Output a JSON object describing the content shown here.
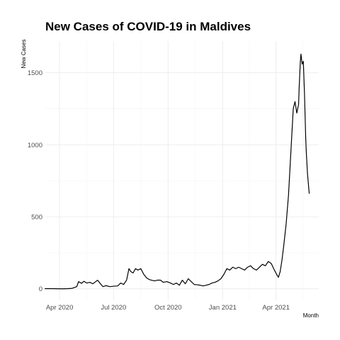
{
  "chart_data": {
    "type": "line",
    "title": "New Cases of COVID-19 in Maldives",
    "xlabel": "Month",
    "ylabel": "New Cases",
    "x_ticks": [
      {
        "date": "2020-04-01",
        "label": "Apr 2020"
      },
      {
        "date": "2020-07-01",
        "label": "Jul 2020"
      },
      {
        "date": "2020-10-01",
        "label": "Oct 2020"
      },
      {
        "date": "2021-01-01",
        "label": "Jan 2021"
      },
      {
        "date": "2021-04-01",
        "label": "Apr 2021"
      }
    ],
    "y_ticks": [
      0,
      500,
      1000,
      1500
    ],
    "xlim": [
      "2020-03-08",
      "2021-06-12"
    ],
    "ylim": [
      -80,
      1720
    ],
    "grid": true,
    "series": [
      {
        "x": [
          "2020-03-07",
          "2020-03-20",
          "2020-04-05",
          "2020-04-15",
          "2020-04-22",
          "2020-04-30",
          "2020-05-03",
          "2020-05-08",
          "2020-05-12",
          "2020-05-17",
          "2020-05-22",
          "2020-05-27",
          "2020-06-01",
          "2020-06-04",
          "2020-06-08",
          "2020-06-13",
          "2020-06-18",
          "2020-06-25",
          "2020-07-01",
          "2020-07-08",
          "2020-07-13",
          "2020-07-18",
          "2020-07-23",
          "2020-07-27",
          "2020-07-30",
          "2020-08-03",
          "2020-08-07",
          "2020-08-11",
          "2020-08-16",
          "2020-08-21",
          "2020-08-26",
          "2020-08-30",
          "2020-09-03",
          "2020-09-08",
          "2020-09-13",
          "2020-09-18",
          "2020-09-23",
          "2020-09-29",
          "2020-10-05",
          "2020-10-10",
          "2020-10-15",
          "2020-10-20",
          "2020-10-25",
          "2020-10-30",
          "2020-11-04",
          "2020-11-09",
          "2020-11-14",
          "2020-11-19",
          "2020-11-24",
          "2020-11-29",
          "2020-12-04",
          "2020-12-09",
          "2020-12-14",
          "2020-12-19",
          "2020-12-24",
          "2020-12-29",
          "2021-01-03",
          "2021-01-08",
          "2021-01-13",
          "2021-01-18",
          "2021-01-23",
          "2021-01-28",
          "2021-02-02",
          "2021-02-07",
          "2021-02-12",
          "2021-02-17",
          "2021-02-22",
          "2021-02-27",
          "2021-03-04",
          "2021-03-09",
          "2021-03-14",
          "2021-03-19",
          "2021-03-24",
          "2021-03-28",
          "2021-04-02",
          "2021-04-05",
          "2021-04-08",
          "2021-04-11",
          "2021-04-14",
          "2021-04-18",
          "2021-04-22",
          "2021-04-26",
          "2021-04-30",
          "2021-05-03",
          "2021-05-06",
          "2021-05-09",
          "2021-05-10",
          "2021-05-12",
          "2021-05-13",
          "2021-05-15",
          "2021-05-17",
          "2021-05-19",
          "2021-05-20",
          "2021-05-21",
          "2021-05-22",
          "2021-05-24",
          "2021-05-27",
          "2021-05-30",
          "2021-06-02",
          "2021-06-05"
        ],
        "y": [
          1,
          1,
          0,
          1,
          3,
          15,
          50,
          38,
          52,
          40,
          45,
          35,
          50,
          60,
          40,
          15,
          22,
          15,
          18,
          20,
          40,
          30,
          60,
          140,
          120,
          110,
          140,
          130,
          140,
          100,
          75,
          65,
          60,
          55,
          60,
          60,
          45,
          50,
          40,
          30,
          40,
          25,
          60,
          35,
          70,
          50,
          30,
          28,
          25,
          20,
          25,
          30,
          40,
          45,
          55,
          70,
          100,
          140,
          130,
          150,
          140,
          150,
          140,
          130,
          150,
          160,
          140,
          130,
          150,
          170,
          160,
          190,
          175,
          140,
          100,
          80,
          120,
          200,
          300,
          450,
          650,
          950,
          1250,
          1300,
          1220,
          1280,
          1400,
          1580,
          1630,
          1560,
          1580,
          1350,
          1200,
          1050,
          950,
          800,
          660,
          null,
          null,
          null
        ]
      }
    ]
  }
}
